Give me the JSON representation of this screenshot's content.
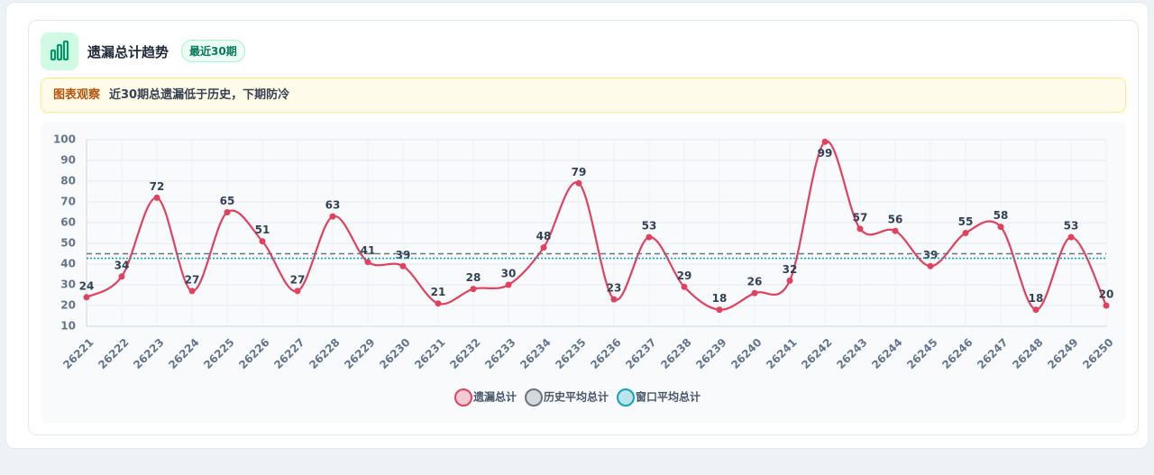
{
  "header": {
    "title": "遗漏总计趋势",
    "badge": "最近30期"
  },
  "insight": {
    "label": "图表观察",
    "text": "近30期总遗漏低于历史，下期防冷"
  },
  "chart_data": {
    "type": "line",
    "categories": [
      "26221",
      "26222",
      "26223",
      "26224",
      "26225",
      "26226",
      "26227",
      "26228",
      "26229",
      "26230",
      "26231",
      "26232",
      "26233",
      "26234",
      "26235",
      "26236",
      "26237",
      "26238",
      "26239",
      "26240",
      "26241",
      "26242",
      "26243",
      "26244",
      "26245",
      "26246",
      "26247",
      "26248",
      "26249",
      "26250"
    ],
    "series": [
      {
        "name": "遗漏总计",
        "color": "#e0415e",
        "values": [
          24,
          34,
          72,
          27,
          65,
          51,
          27,
          63,
          41,
          39,
          21,
          28,
          30,
          48,
          79,
          23,
          53,
          29,
          18,
          26,
          32,
          99,
          57,
          56,
          39,
          55,
          58,
          18,
          53,
          20
        ]
      },
      {
        "name": "历史平均总计",
        "color": "#6b7280",
        "value": 45
      },
      {
        "name": "窗口平均总计",
        "color": "#0ea5b7",
        "value": 42.8
      }
    ],
    "ylim": [
      10,
      100
    ],
    "yticks": [
      10,
      20,
      30,
      40,
      50,
      60,
      70,
      80,
      90,
      100
    ],
    "grid": true,
    "legend": "bottom"
  }
}
